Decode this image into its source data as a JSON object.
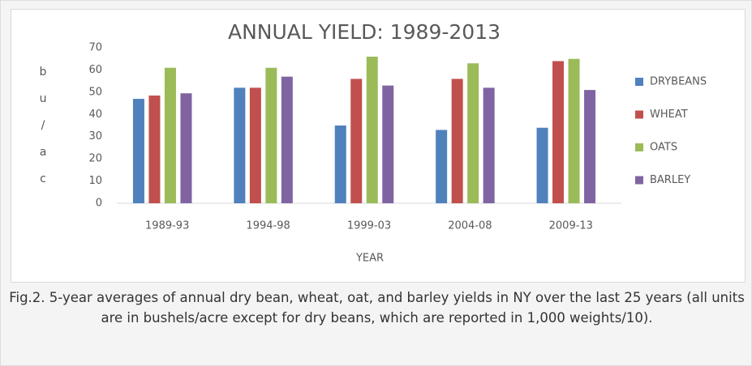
{
  "chart_data": {
    "type": "bar",
    "title": "ANNUAL YIELD: 1989-2013",
    "xlabel": "YEAR",
    "ylabel": "bu/ac",
    "categories": [
      "1989-93",
      "1994-98",
      "1999-03",
      "2004-08",
      "2009-13"
    ],
    "series": [
      {
        "name": "DRYBEANS",
        "color": "#4f81bd",
        "values": [
          47,
          52,
          35,
          33,
          34
        ]
      },
      {
        "name": "WHEAT",
        "color": "#c0504d",
        "values": [
          48.5,
          52,
          56,
          56,
          64
        ]
      },
      {
        "name": "OATS",
        "color": "#9bbb59",
        "values": [
          61,
          61,
          66,
          63,
          65
        ]
      },
      {
        "name": "BARLEY",
        "color": "#8064a2",
        "values": [
          49.5,
          57,
          53,
          52,
          51
        ]
      }
    ],
    "ylim": [
      0,
      70
    ],
    "yticks": [
      0,
      10,
      20,
      30,
      40,
      50,
      60,
      70
    ],
    "grid": false,
    "legend": "right"
  },
  "caption": "Fig.2. 5-year averages of annual dry bean, wheat, oat, and barley yields in NY over the last 25 years (all units are in bushels/acre except for dry beans, which are reported in 1,000 weights/10)."
}
